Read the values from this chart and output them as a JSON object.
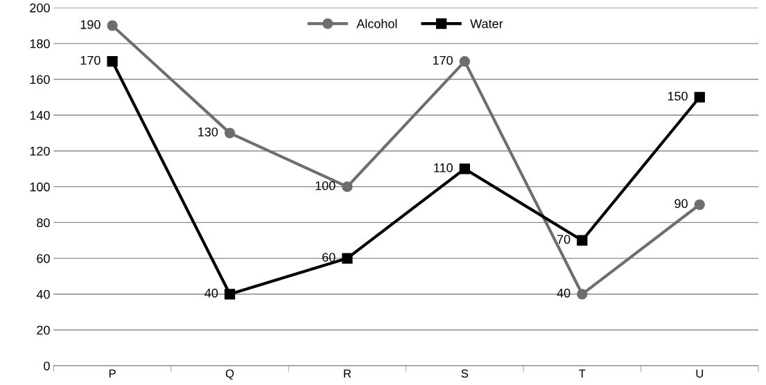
{
  "chart_data": {
    "type": "line",
    "categories": [
      "P",
      "Q",
      "R",
      "S",
      "T",
      "U"
    ],
    "series": [
      {
        "name": "Alcohol",
        "color": "#6e6e6e",
        "marker": "circle",
        "values": [
          190,
          130,
          100,
          170,
          40,
          90
        ]
      },
      {
        "name": "Water",
        "color": "#000000",
        "marker": "square",
        "values": [
          170,
          40,
          60,
          110,
          70,
          150
        ]
      }
    ],
    "ylim": [
      0,
      200
    ],
    "yticks": [
      0,
      20,
      40,
      60,
      80,
      100,
      120,
      140,
      160,
      180,
      200
    ],
    "grid": "y",
    "legend": "top",
    "data_labels": true,
    "line_style": "solid"
  }
}
